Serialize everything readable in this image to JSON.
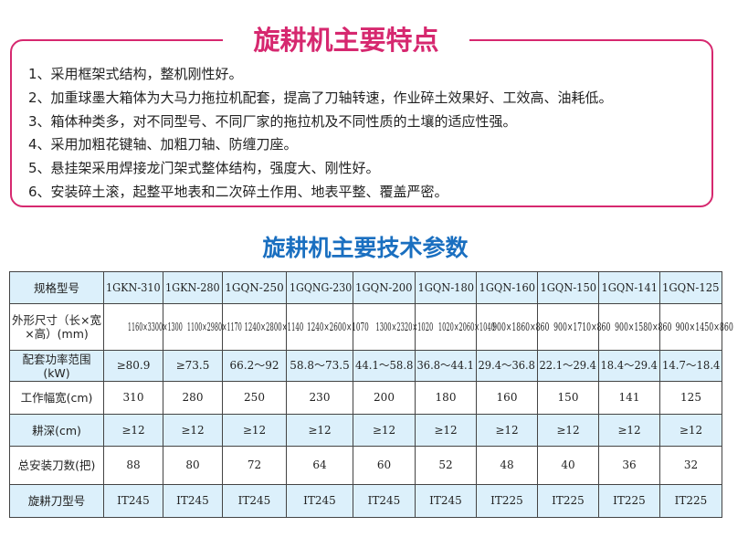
{
  "features": {
    "title": "旋耕机主要特点",
    "items": [
      "1、采用框架式结构，整机刚性好。",
      "2、加重球墨大箱体为大马力拖拉机配套，提高了刀轴转速，作业碎土效果好、工效高、油耗低。",
      "3、箱体种类多，对不同型号、不同厂家的拖拉机及不同性质的土壤的适应性强。",
      "4、采用加粗花键轴、加粗刀轴、防缠刀座。",
      "5、悬挂架采用焊接龙门架式整体结构，强度大、刚性好。",
      "6、安装碎土滚，起整平地表和二次碎土作用、地表平整、覆盖严密。"
    ]
  },
  "specs": {
    "title": "旋耕机主要技术参数",
    "accent_color": "#1a6fc0",
    "row_highlight_color": "#dcf0fb",
    "rows": [
      {
        "label": "规格型号",
        "values": [
          "1GKN-310",
          "1GKN-280",
          "1GQN-250",
          "1GQNG-230",
          "1GQN-200",
          "1GQN-180",
          "1GQN-160",
          "1GQN-150",
          "1GQN-141",
          "1GQN-125"
        ]
      },
      {
        "label": "外形尺寸（长×宽×高）(mm)",
        "values": [
          "1160×3300×1300",
          "1100×2980×1170",
          "1240×2800×1140",
          "1240×2600×1070",
          "1300×2320×1020",
          "1020×2060×1040",
          "900×1860×860",
          "900×1710×860",
          "900×1580×860",
          "900×1450×860"
        ]
      },
      {
        "label": "配套功率范围(kW)",
        "values": [
          "≥80.9",
          "≥73.5",
          "66.2～92",
          "58.8～73.5",
          "44.1～58.8",
          "36.8～44.1",
          "29.4～36.8",
          "22.1～29.4",
          "18.4～29.4",
          "14.7～18.4"
        ]
      },
      {
        "label": "工作幅宽(cm)",
        "values": [
          "310",
          "280",
          "250",
          "230",
          "200",
          "180",
          "160",
          "150",
          "141",
          "125"
        ]
      },
      {
        "label": "耕深(cm)",
        "values": [
          "≥12",
          "≥12",
          "≥12",
          "≥12",
          "≥12",
          "≥12",
          "≥12",
          "≥12",
          "≥12",
          "≥12"
        ]
      },
      {
        "label": "总安装刀数(把)",
        "values": [
          "88",
          "80",
          "72",
          "64",
          "60",
          "52",
          "48",
          "40",
          "36",
          "32"
        ]
      },
      {
        "label": "旋耕刀型号",
        "values": [
          "IT245",
          "IT245",
          "IT245",
          "IT245",
          "IT245",
          "IT245",
          "IT225",
          "IT225",
          "IT225",
          "IT225"
        ]
      }
    ]
  },
  "brand_color": "#d6286f"
}
